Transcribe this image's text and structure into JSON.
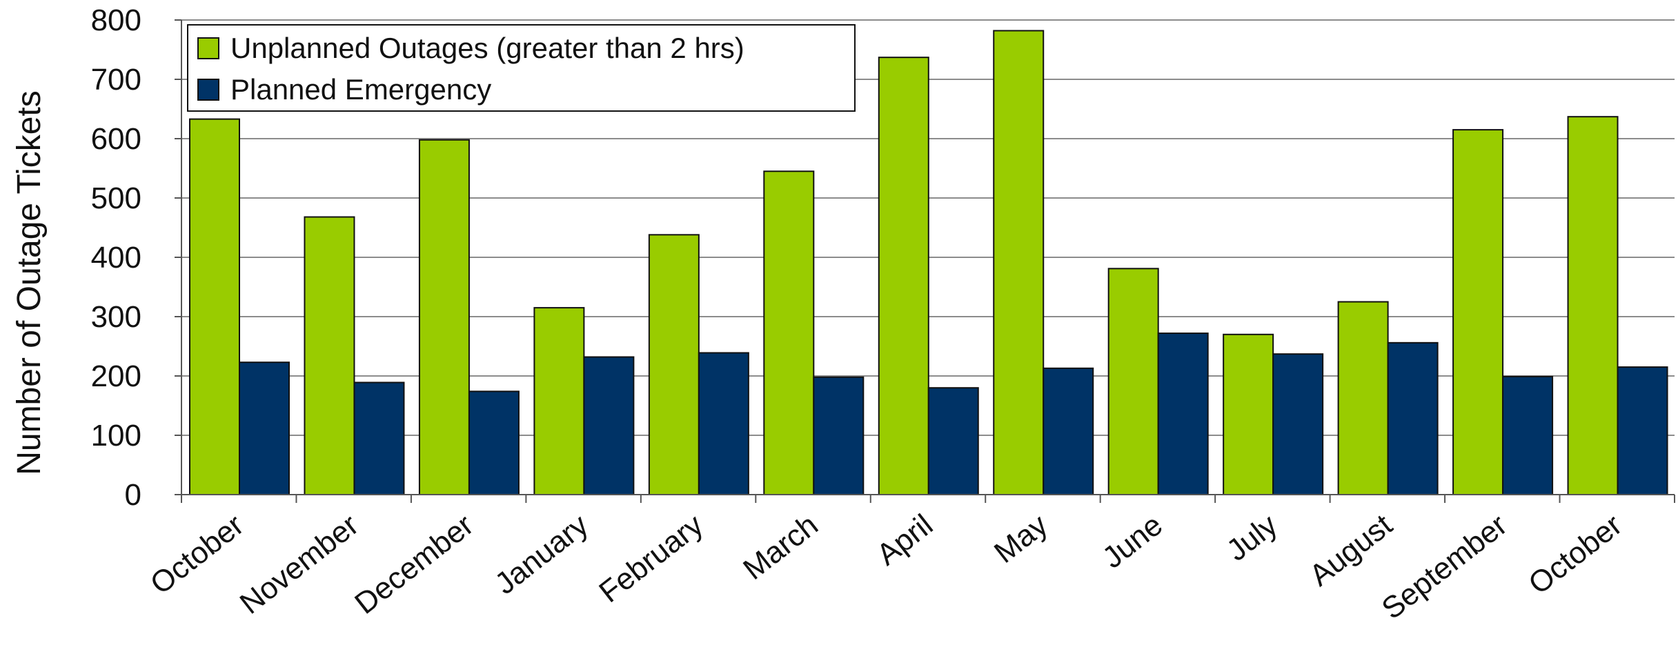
{
  "chart_data": {
    "type": "bar",
    "title": "",
    "xlabel": "",
    "ylabel": "Number of Outage Tickets",
    "categories": [
      "October",
      "November",
      "December",
      "January",
      "February",
      "March",
      "April",
      "May",
      "June",
      "July",
      "August",
      "September",
      "October"
    ],
    "series": [
      {
        "name": "Unplanned Outages (greater than 2 hrs)",
        "color": "#99cc00",
        "values": [
          633,
          468,
          598,
          315,
          438,
          545,
          737,
          782,
          381,
          270,
          325,
          615,
          637
        ]
      },
      {
        "name": "Planned Emergency",
        "color": "#003366",
        "values": [
          223,
          189,
          174,
          232,
          239,
          198,
          180,
          213,
          272,
          237,
          256,
          199,
          215
        ]
      }
    ],
    "ylim": [
      0,
      800
    ],
    "yticks": [
      0,
      100,
      200,
      300,
      400,
      500,
      600,
      700,
      800
    ],
    "grid": true,
    "legend_position": "top-left"
  }
}
